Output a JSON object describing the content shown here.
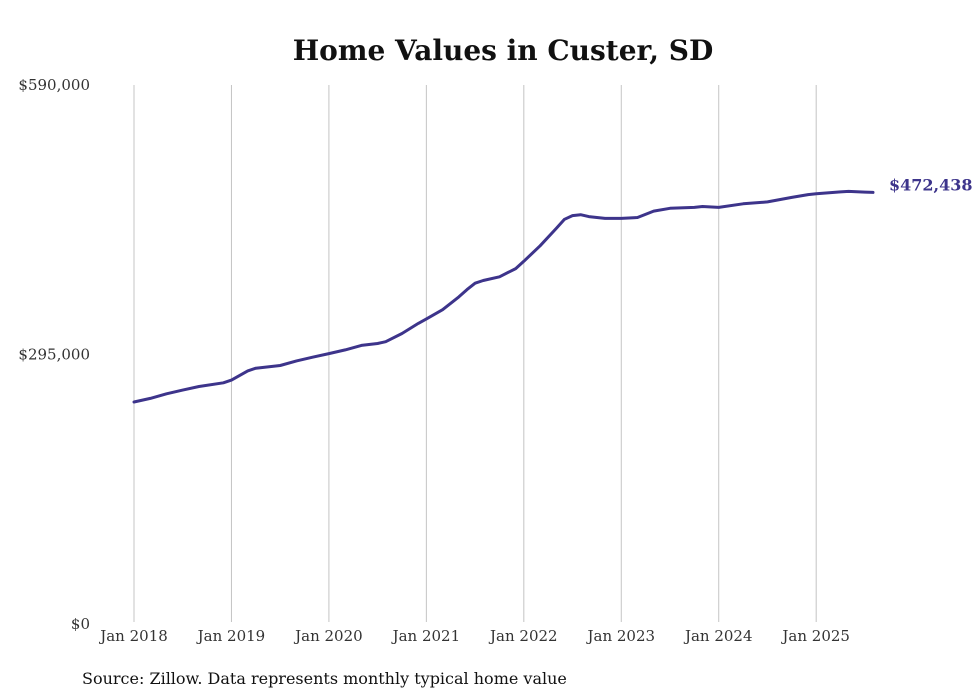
{
  "chart_data": {
    "type": "line",
    "title": "Home Values in Custer, SD",
    "source": "Source: Zillow. Data represents monthly typical home value",
    "ylim": [
      0,
      590000
    ],
    "yticks": [
      {
        "value": 0,
        "label": "$0"
      },
      {
        "value": 295000,
        "label": "$295,000"
      },
      {
        "value": 590000,
        "label": "$590,000"
      }
    ],
    "xlim": [
      2018.0,
      2025.583
    ],
    "xticks": [
      {
        "value": 2018,
        "label": "Jan 2018"
      },
      {
        "value": 2019,
        "label": "Jan 2019"
      },
      {
        "value": 2020,
        "label": "Jan 2020"
      },
      {
        "value": 2021,
        "label": "Jan 2021"
      },
      {
        "value": 2022,
        "label": "Jan 2022"
      },
      {
        "value": 2023,
        "label": "Jan 2023"
      },
      {
        "value": 2024,
        "label": "Jan 2024"
      },
      {
        "value": 2025,
        "label": "Jan 2025"
      }
    ],
    "xlabel": "",
    "ylabel": "",
    "grid": "vertical",
    "series": [
      {
        "name": "Typical home value",
        "color": "#3d348b",
        "end_label": "$472,438",
        "points": [
          [
            2018.0,
            243000
          ],
          [
            2018.167,
            247000
          ],
          [
            2018.333,
            252000
          ],
          [
            2018.5,
            256000
          ],
          [
            2018.667,
            260000
          ],
          [
            2018.917,
            264000
          ],
          [
            2019.0,
            267000
          ],
          [
            2019.167,
            277000
          ],
          [
            2019.25,
            280000
          ],
          [
            2019.5,
            283000
          ],
          [
            2019.667,
            288000
          ],
          [
            2019.833,
            292000
          ],
          [
            2020.0,
            296000
          ],
          [
            2020.167,
            300000
          ],
          [
            2020.333,
            305000
          ],
          [
            2020.5,
            307000
          ],
          [
            2020.583,
            309000
          ],
          [
            2020.75,
            318000
          ],
          [
            2020.917,
            329000
          ],
          [
            2021.0,
            334000
          ],
          [
            2021.167,
            344000
          ],
          [
            2021.333,
            358000
          ],
          [
            2021.417,
            366000
          ],
          [
            2021.5,
            373000
          ],
          [
            2021.583,
            376000
          ],
          [
            2021.75,
            380000
          ],
          [
            2021.917,
            389000
          ],
          [
            2022.0,
            397000
          ],
          [
            2022.167,
            414000
          ],
          [
            2022.333,
            433000
          ],
          [
            2022.417,
            443000
          ],
          [
            2022.5,
            447000
          ],
          [
            2022.583,
            448000
          ],
          [
            2022.667,
            446000
          ],
          [
            2022.833,
            444000
          ],
          [
            2023.0,
            444000
          ],
          [
            2023.167,
            445000
          ],
          [
            2023.333,
            452000
          ],
          [
            2023.5,
            455000
          ],
          [
            2023.75,
            456000
          ],
          [
            2023.833,
            457000
          ],
          [
            2024.0,
            456000
          ],
          [
            2024.25,
            460000
          ],
          [
            2024.5,
            462000
          ],
          [
            2024.75,
            467000
          ],
          [
            2024.917,
            470000
          ],
          [
            2025.0,
            471000
          ],
          [
            2025.25,
            473000
          ],
          [
            2025.333,
            473500
          ],
          [
            2025.5,
            472800
          ],
          [
            2025.583,
            472438
          ]
        ]
      }
    ]
  }
}
